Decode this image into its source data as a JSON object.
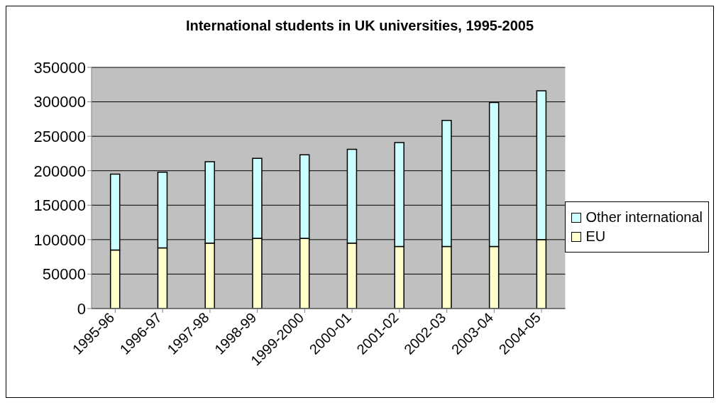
{
  "chart_data": {
    "type": "bar",
    "title": "International students in UK universities, 1995-2005",
    "categories": [
      "1995-96",
      "1996-97",
      "1997-98",
      "1998-99",
      "1999-2000",
      "2000-01",
      "2001-02",
      "2002-03",
      "2003-04",
      "2004-05"
    ],
    "stacked": true,
    "series": [
      {
        "name": "EU",
        "color": "#ffffcc",
        "values": [
          85000,
          88000,
          95000,
          102000,
          102000,
          95000,
          90000,
          90000,
          90000,
          100000
        ]
      },
      {
        "name": "Other international",
        "color": "#ccffff",
        "values": [
          110000,
          110000,
          118000,
          116000,
          121000,
          136000,
          151000,
          183000,
          209000,
          216000
        ]
      }
    ],
    "ylim": [
      0,
      350000
    ],
    "yticks": [
      0,
      50000,
      100000,
      150000,
      200000,
      250000,
      300000,
      350000
    ],
    "grid": "y",
    "legend": "right"
  }
}
